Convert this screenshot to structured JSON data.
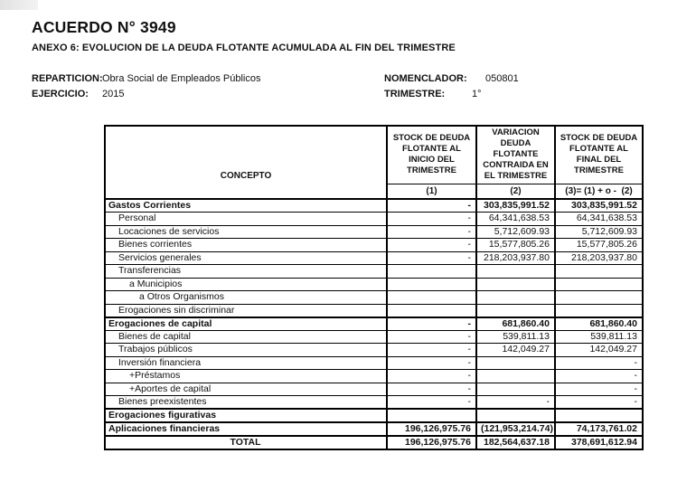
{
  "page": {
    "title": "ACUERDO N° 3949",
    "subtitle": "ANEXO 6: EVOLUCION DE LA DEUDA FLOTANTE ACUMULADA AL FIN DEL TRIMESTRE"
  },
  "info": {
    "reparticion_label": "REPARTICION:",
    "reparticion_value": "Obra Social de Empleados Públicos",
    "ejercicio_label": "EJERCICIO:",
    "ejercicio_value": "2015",
    "nomenclador_label": "NOMENCLADOR:",
    "nomenclador_value": "050801",
    "trimestre_label": "TRIMESTRE:",
    "trimestre_value": "1°"
  },
  "table": {
    "headers": {
      "concepto": "CONCEPTO",
      "col1": "STOCK DE DEUDA\nFLOTANTE AL\nINICIO DEL\nTRIMESTRE",
      "col2": "VARIACION\nDEUDA\nFLOTANTE\nCONTRAIDA EN\nEL TRIMESTRE",
      "col3": "STOCK DE DEUDA\nFLOTANTE AL\nFINAL DEL\nTRIMESTRE",
      "sub1": "(1)",
      "sub2": "(2)",
      "sub3": "(3)= (1) + o -  (2)"
    },
    "rows": [
      {
        "label": "Gastos Corrientes",
        "indent": 0,
        "bold": true,
        "section": true,
        "c1": "-",
        "c2": "303,835,991.52",
        "c3": "303,835,991.52"
      },
      {
        "label": "Personal",
        "indent": 1,
        "c1": "-",
        "c2": "64,341,638.53",
        "c3": "64,341,638.53"
      },
      {
        "label": "Locaciones de servicios",
        "indent": 1,
        "c1": "-",
        "c2": "5,712,609.93",
        "c3": "5,712,609.93"
      },
      {
        "label": "Bienes corrientes",
        "indent": 1,
        "c1": "-",
        "c2": "15,577,805.26",
        "c3": "15,577,805.26"
      },
      {
        "label": "Servicios generales",
        "indent": 1,
        "c1": "-",
        "c2": "218,203,937.80",
        "c3": "218,203,937.80"
      },
      {
        "label": "Transferencias",
        "indent": 1,
        "c1": "",
        "c2": "",
        "c3": ""
      },
      {
        "label": "a Municipios",
        "indent": 2,
        "c1": "",
        "c2": "",
        "c3": ""
      },
      {
        "label": "a Otros Organismos",
        "indent": 3,
        "c1": "",
        "c2": "",
        "c3": ""
      },
      {
        "label": "Erogaciones sin discriminar",
        "indent": 1,
        "c1": "",
        "c2": "",
        "c3": ""
      },
      {
        "label": "Erogaciones de capital",
        "indent": 0,
        "bold": true,
        "section": true,
        "c1": "-",
        "c2": "681,860.40",
        "c3": "681,860.40"
      },
      {
        "label": "Bienes de capital",
        "indent": 1,
        "c1": "-",
        "c2": "539,811.13",
        "c3": "539,811.13"
      },
      {
        "label": "Trabajos públicos",
        "indent": 1,
        "c1": "-",
        "c2": "142,049.27",
        "c3": "142,049.27"
      },
      {
        "label": "Inversión financiera",
        "indent": 1,
        "c1": "-",
        "c2": "",
        "c3": "-"
      },
      {
        "label": "+Préstamos",
        "indent": 2,
        "c1": "-",
        "c2": "",
        "c3": "-"
      },
      {
        "label": "+Aportes de capital",
        "indent": 2,
        "c1": "-",
        "c2": "",
        "c3": "-"
      },
      {
        "label": "Bienes preexistentes",
        "indent": 1,
        "c1": "-",
        "c2": "-",
        "c3": "-"
      },
      {
        "label": "Erogaciones figurativas",
        "indent": 0,
        "bold": true,
        "section": true,
        "c1": "",
        "c2": "",
        "c3": ""
      },
      {
        "label": "Aplicaciones financieras",
        "indent": 0,
        "bold": true,
        "section": true,
        "c1": "196,126,975.76",
        "c2": "(121,953,214.74)",
        "c3": "74,173,761.02"
      },
      {
        "label": "TOTAL",
        "indent": 0,
        "bold": true,
        "section": true,
        "total": true,
        "c1": "196,126,975.76",
        "c2": "182,564,637.18",
        "c3": "378,691,612.94"
      }
    ]
  }
}
